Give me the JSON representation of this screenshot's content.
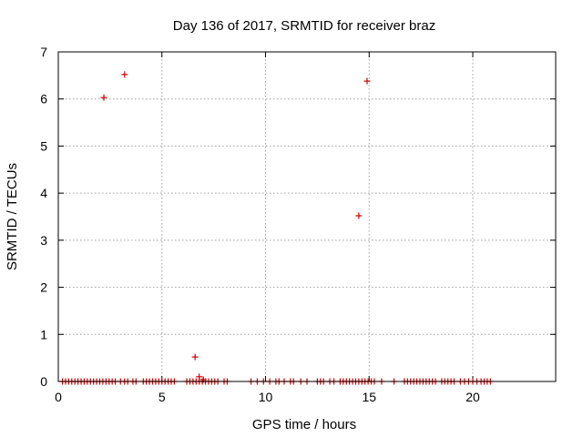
{
  "chart_data": {
    "type": "scatter",
    "title": "Day 136 of 2017, SRMTID for receiver braz",
    "xlabel": "GPS time / hours",
    "ylabel": "SRMTID / TECUs",
    "xlim": [
      0,
      24
    ],
    "ylim": [
      0,
      7
    ],
    "xticks": [
      0,
      5,
      10,
      15,
      20
    ],
    "yticks": [
      0,
      1,
      2,
      3,
      4,
      5,
      6,
      7
    ],
    "grid": true,
    "marker": "+",
    "color": "#cc0000",
    "series": [
      {
        "name": "SRMTID",
        "points": [
          [
            2.2,
            6.03
          ],
          [
            3.2,
            6.52
          ],
          [
            14.9,
            6.38
          ],
          [
            14.5,
            3.52
          ],
          [
            6.6,
            0.52
          ],
          [
            6.8,
            0.1
          ],
          [
            7.0,
            0.04
          ],
          [
            0.2,
            0
          ],
          [
            0.35,
            0
          ],
          [
            0.5,
            0
          ],
          [
            0.65,
            0
          ],
          [
            0.8,
            0
          ],
          [
            0.95,
            0
          ],
          [
            1.1,
            0
          ],
          [
            1.25,
            0
          ],
          [
            1.4,
            0
          ],
          [
            1.55,
            0
          ],
          [
            1.7,
            0
          ],
          [
            1.85,
            0
          ],
          [
            2.0,
            0
          ],
          [
            2.15,
            0
          ],
          [
            2.3,
            0
          ],
          [
            2.45,
            0
          ],
          [
            2.6,
            0
          ],
          [
            2.75,
            0
          ],
          [
            3.0,
            0
          ],
          [
            3.2,
            0
          ],
          [
            3.35,
            0
          ],
          [
            3.6,
            0
          ],
          [
            3.75,
            0
          ],
          [
            4.1,
            0
          ],
          [
            4.25,
            0
          ],
          [
            4.4,
            0
          ],
          [
            4.55,
            0
          ],
          [
            4.7,
            0
          ],
          [
            4.85,
            0
          ],
          [
            5.0,
            0
          ],
          [
            5.15,
            0
          ],
          [
            5.3,
            0
          ],
          [
            5.45,
            0
          ],
          [
            5.6,
            0
          ],
          [
            6.2,
            0
          ],
          [
            6.35,
            0
          ],
          [
            6.5,
            0
          ],
          [
            6.65,
            0
          ],
          [
            6.8,
            0
          ],
          [
            6.95,
            0
          ],
          [
            7.1,
            0
          ],
          [
            7.25,
            0
          ],
          [
            7.4,
            0
          ],
          [
            7.55,
            0
          ],
          [
            7.7,
            0
          ],
          [
            8.0,
            0
          ],
          [
            8.15,
            0
          ],
          [
            9.3,
            0
          ],
          [
            9.6,
            0
          ],
          [
            9.9,
            0
          ],
          [
            10.2,
            0
          ],
          [
            10.5,
            0
          ],
          [
            10.65,
            0
          ],
          [
            10.9,
            0
          ],
          [
            11.2,
            0
          ],
          [
            11.35,
            0
          ],
          [
            11.7,
            0
          ],
          [
            12.0,
            0
          ],
          [
            12.5,
            0
          ],
          [
            12.65,
            0
          ],
          [
            12.8,
            0
          ],
          [
            13.1,
            0
          ],
          [
            13.3,
            0
          ],
          [
            13.6,
            0
          ],
          [
            13.75,
            0
          ],
          [
            13.9,
            0
          ],
          [
            14.05,
            0
          ],
          [
            14.2,
            0
          ],
          [
            14.35,
            0
          ],
          [
            14.5,
            0
          ],
          [
            14.65,
            0
          ],
          [
            14.8,
            0
          ],
          [
            14.95,
            0
          ],
          [
            15.1,
            0
          ],
          [
            15.25,
            0
          ],
          [
            15.6,
            0
          ],
          [
            16.2,
            0
          ],
          [
            16.7,
            0
          ],
          [
            16.85,
            0
          ],
          [
            17.0,
            0
          ],
          [
            17.15,
            0
          ],
          [
            17.3,
            0
          ],
          [
            17.45,
            0
          ],
          [
            17.6,
            0
          ],
          [
            17.75,
            0
          ],
          [
            17.9,
            0
          ],
          [
            18.05,
            0
          ],
          [
            18.2,
            0
          ],
          [
            18.5,
            0
          ],
          [
            18.65,
            0
          ],
          [
            18.8,
            0
          ],
          [
            18.95,
            0
          ],
          [
            19.1,
            0
          ],
          [
            19.4,
            0
          ],
          [
            19.6,
            0
          ],
          [
            19.8,
            0
          ],
          [
            20.0,
            0
          ],
          [
            20.2,
            0
          ],
          [
            20.4,
            0
          ],
          [
            20.55,
            0
          ],
          [
            20.7,
            0
          ],
          [
            20.85,
            0
          ]
        ]
      }
    ]
  }
}
